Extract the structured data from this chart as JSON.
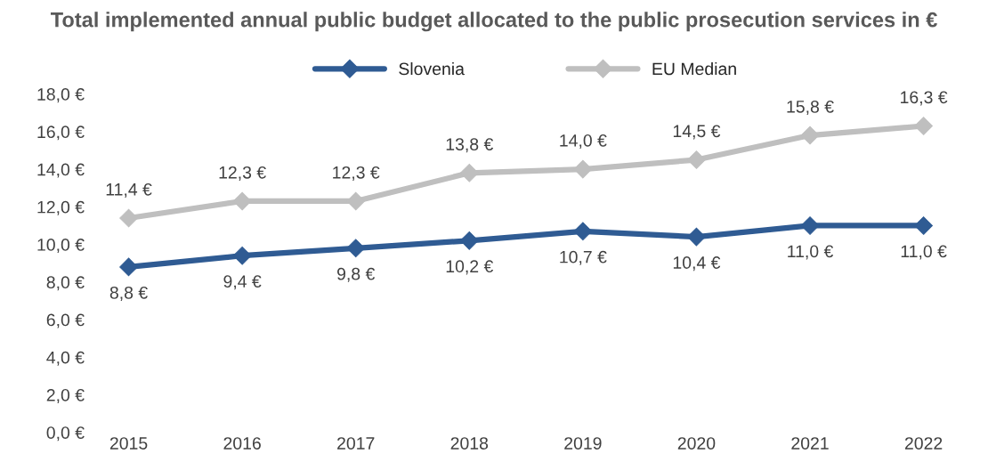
{
  "chart_data": {
    "type": "line",
    "title": "Total implemented annual public budget allocated to the public prosecution services in €",
    "categories": [
      "2015",
      "2016",
      "2017",
      "2018",
      "2019",
      "2020",
      "2021",
      "2022"
    ],
    "series": [
      {
        "name": "Slovenia",
        "color": "#2f5b93",
        "values": [
          8.8,
          9.4,
          9.8,
          10.2,
          10.7,
          10.4,
          11.0,
          11.0
        ],
        "value_labels": [
          "8,8 €",
          "9,4 €",
          "9,8 €",
          "10,2 €",
          "10,7 €",
          "10,4 €",
          "11,0 €",
          "11,0 €"
        ]
      },
      {
        "name": "EU Median",
        "color": "#bfbfbf",
        "values": [
          11.4,
          12.3,
          12.3,
          13.8,
          14.0,
          14.5,
          15.8,
          16.3
        ],
        "value_labels": [
          "11,4 €",
          "12,3 €",
          "12,3 €",
          "13,8 €",
          "14,0 €",
          "14,5 €",
          "15,8 €",
          "16,3 €"
        ]
      }
    ],
    "ylim": [
      0,
      18
    ],
    "yticks": [
      {
        "value": 0,
        "label": "0,0 €"
      },
      {
        "value": 2,
        "label": "2,0 €"
      },
      {
        "value": 4,
        "label": "4,0 €"
      },
      {
        "value": 6,
        "label": "6,0 €"
      },
      {
        "value": 8,
        "label": "8,0 €"
      },
      {
        "value": 10,
        "label": "10,0 €"
      },
      {
        "value": 12,
        "label": "12,0 €"
      },
      {
        "value": 14,
        "label": "14,0 €"
      },
      {
        "value": 16,
        "label": "16,0 €"
      },
      {
        "value": 18,
        "label": "18,0 €"
      }
    ],
    "grid": false,
    "legend": "top",
    "marker": "diamond",
    "line_style": "solid"
  }
}
